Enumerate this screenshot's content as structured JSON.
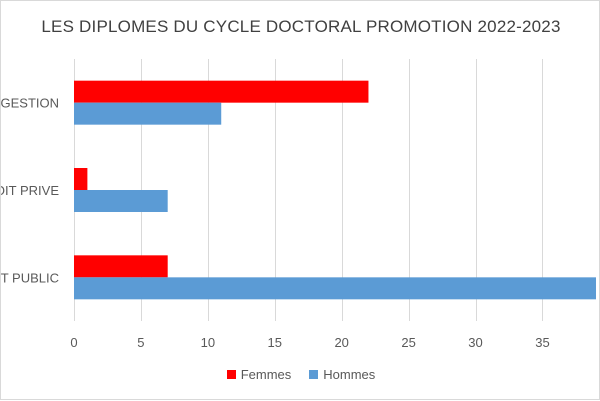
{
  "chart_data": {
    "type": "bar",
    "orientation": "horizontal",
    "title": "LES DIPLOMES DU CYCLE DOCTORAL PROMOTION 2022-2023",
    "categories": [
      "GESTION",
      "DROIT PRIVE",
      "DROIT PUBLIC"
    ],
    "series": [
      {
        "name": "Femmes",
        "values": [
          22,
          1,
          7
        ],
        "color": "#ff0000"
      },
      {
        "name": "Hommes",
        "values": [
          11,
          7,
          39
        ],
        "color": "#5b9bd5"
      }
    ],
    "xlim": [
      0,
      39
    ],
    "xticks": [
      0,
      5,
      10,
      15,
      20,
      25,
      30,
      35
    ],
    "grid": true,
    "legend_position": "bottom"
  }
}
